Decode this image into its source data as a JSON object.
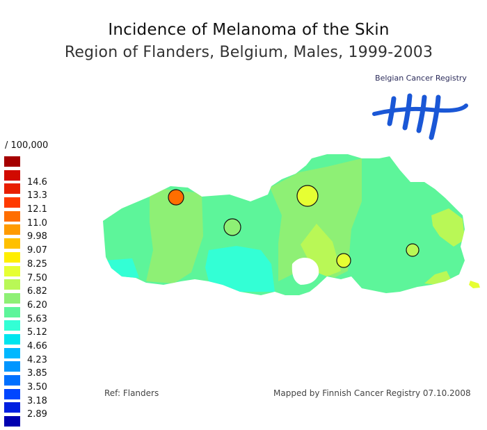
{
  "header": {
    "title": "Incidence of Melanoma of the Skin",
    "subtitle": "Region of Flanders, Belgium, Males, 1999-2003"
  },
  "logo": {
    "text": "Belgian Cancer Registry",
    "mark_color": "#1a57d6"
  },
  "legend": {
    "unit": "/ 100,000",
    "items": [
      {
        "label": "",
        "color": "#a50000"
      },
      {
        "label": "14.6",
        "color": "#d10a00"
      },
      {
        "label": "13.3",
        "color": "#e81e00"
      },
      {
        "label": "12.1",
        "color": "#ff3a00"
      },
      {
        "label": "11.0",
        "color": "#ff6e00"
      },
      {
        "label": "9.98",
        "color": "#ff9b00"
      },
      {
        "label": "9.07",
        "color": "#ffc000"
      },
      {
        "label": "8.25",
        "color": "#ffee00"
      },
      {
        "label": "7.50",
        "color": "#e6ff33"
      },
      {
        "label": "6.82",
        "color": "#b9f856"
      },
      {
        "label": "6.20",
        "color": "#8ef075"
      },
      {
        "label": "5.63",
        "color": "#5df59a"
      },
      {
        "label": "5.12",
        "color": "#33ffd5"
      },
      {
        "label": "4.66",
        "color": "#00e5ee"
      },
      {
        "label": "4.23",
        "color": "#00b8ff"
      },
      {
        "label": "3.85",
        "color": "#0096ff"
      },
      {
        "label": "3.50",
        "color": "#0070ff"
      },
      {
        "label": "3.18",
        "color": "#0046ff"
      },
      {
        "label": "2.89",
        "color": "#0020e0"
      },
      {
        "label": "",
        "color": "#0000b0"
      }
    ]
  },
  "map": {
    "region_color": "#5df59a",
    "zone_colors": {
      "west": "#8ef075",
      "coast": "#5df59a",
      "southwest": "#33ffd5",
      "center_west": "#8ef075",
      "center": "#8ef075",
      "center_south": "#b9f856",
      "east_edge": "#b9f856"
    },
    "markers": [
      {
        "name": "marker-west",
        "color": "#ff6e00"
      },
      {
        "name": "marker-center-west",
        "color": "#8ef075"
      },
      {
        "name": "marker-center",
        "color": "#e6ff33"
      },
      {
        "name": "marker-south-center",
        "color": "#e6ff33"
      },
      {
        "name": "marker-east",
        "color": "#b9f856"
      }
    ]
  },
  "footer": {
    "ref": "Ref: Flanders",
    "mapped_by": "Mapped by Finnish Cancer Registry 07.10.2008"
  }
}
